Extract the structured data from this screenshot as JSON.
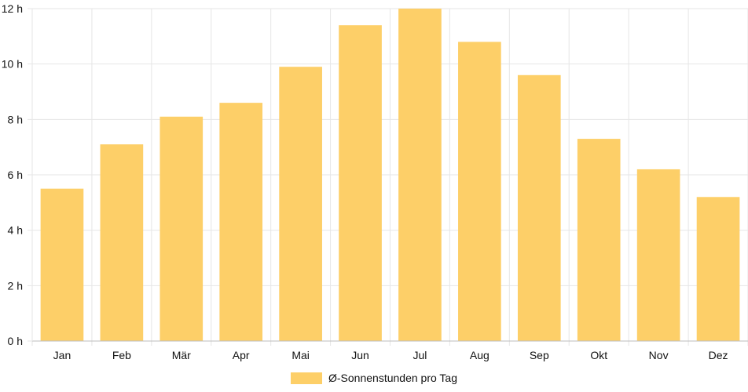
{
  "colors": {
    "bar": "#fdcf68",
    "grid": "#e6e6e6",
    "axis": "#bdbdbd",
    "text": "#111111"
  },
  "chart_data": {
    "type": "bar",
    "categories": [
      "Jan",
      "Feb",
      "Mär",
      "Apr",
      "Mai",
      "Jun",
      "Jul",
      "Aug",
      "Sep",
      "Okt",
      "Nov",
      "Dez"
    ],
    "series": [
      {
        "name": "Ø-Sonnenstunden pro Tag",
        "values": [
          5.5,
          7.1,
          8.1,
          8.6,
          9.9,
          11.4,
          12.0,
          10.8,
          9.6,
          7.3,
          6.2,
          5.2
        ]
      }
    ],
    "y_ticks": [
      {
        "value": 0,
        "label": "0 h"
      },
      {
        "value": 2,
        "label": "2 h"
      },
      {
        "value": 4,
        "label": "4 h"
      },
      {
        "value": 6,
        "label": "6 h"
      },
      {
        "value": 8,
        "label": "8 h"
      },
      {
        "value": 10,
        "label": "10 h"
      },
      {
        "value": 12,
        "label": "12 h"
      }
    ],
    "ylim": [
      0,
      12
    ],
    "grid": true,
    "legend_position": "bottom"
  }
}
